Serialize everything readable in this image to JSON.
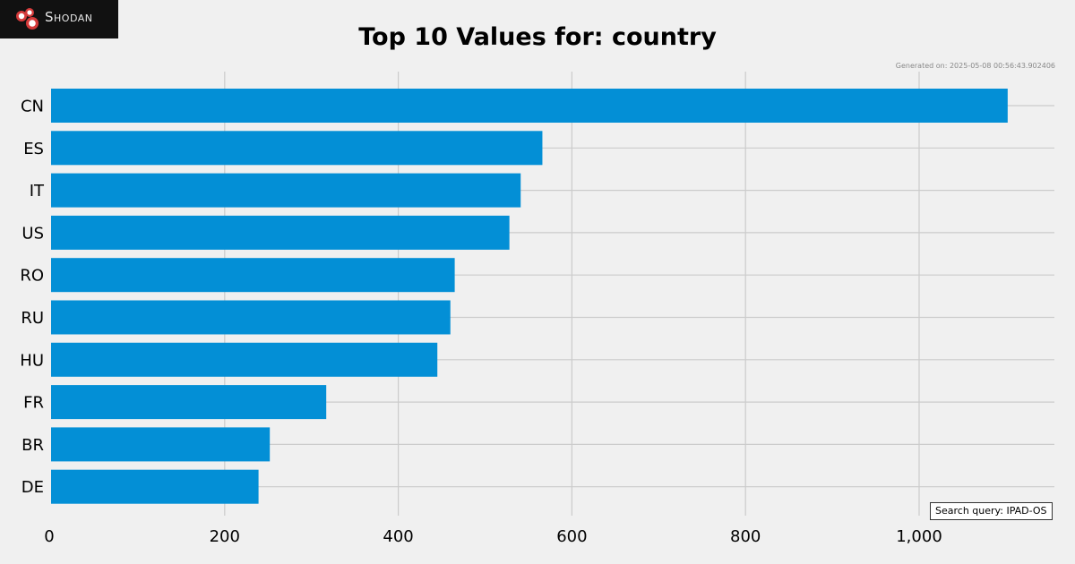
{
  "brand": {
    "name": "Shodan"
  },
  "generated_text": "Generated on: 2025-05-08 00:56:43.902406",
  "search_query": "Search query: IPAD-OS",
  "colors": {
    "bar": "#038fd6",
    "grid": "#cbcbcb",
    "background": "#f0f0f0"
  },
  "chart_data": {
    "type": "bar",
    "orientation": "horizontal",
    "title": "Top 10 Values for: country",
    "xlabel": "",
    "ylabel": "",
    "categories": [
      "CN",
      "ES",
      "IT",
      "US",
      "RO",
      "RU",
      "HU",
      "FR",
      "BR",
      "DE"
    ],
    "values": [
      1102,
      566,
      541,
      528,
      465,
      460,
      445,
      317,
      252,
      239
    ],
    "xlim": [
      0,
      1150
    ],
    "xticks": [
      0,
      200,
      400,
      600,
      800,
      1000
    ],
    "xtick_labels": [
      "0",
      "200",
      "400",
      "600",
      "800",
      "1,000"
    ],
    "grid": true
  }
}
